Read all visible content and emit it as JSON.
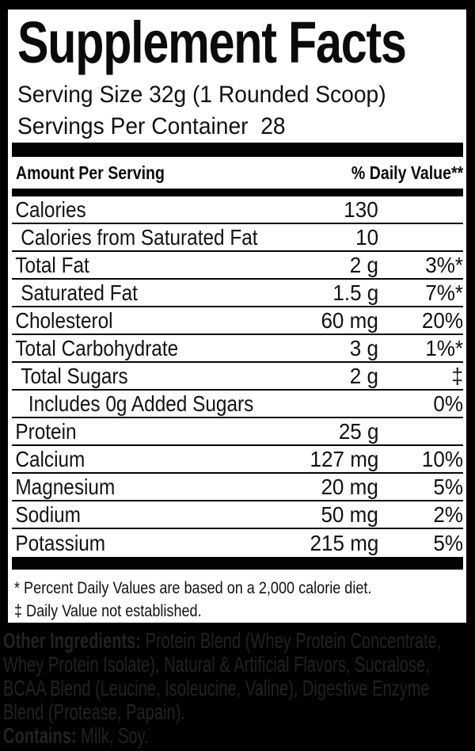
{
  "title": "Supplement Facts",
  "serving": {
    "size_line": "Serving Size 32g (1 Rounded Scoop)",
    "servings_line": "Servings Per Container  28"
  },
  "header": {
    "left": "Amount Per Serving",
    "right": "% Daily Value**"
  },
  "rows": [
    {
      "label": "Calories",
      "amount": "130",
      "dv": "",
      "indent": 0
    },
    {
      "label": "Calories from Saturated Fat",
      "amount": "10",
      "dv": "",
      "indent": 1
    },
    {
      "label": "Total Fat",
      "amount": "2 g",
      "dv": "3%*",
      "indent": 0
    },
    {
      "label": "Saturated Fat",
      "amount": "1.5 g",
      "dv": "7%*",
      "indent": 1
    },
    {
      "label": "Cholesterol",
      "amount": "60 mg",
      "dv": "20%",
      "indent": 0
    },
    {
      "label": "Total Carbohydrate",
      "amount": "3 g",
      "dv": "1%*",
      "indent": 0
    },
    {
      "label": "Total Sugars",
      "amount": "2 g",
      "dv": "‡",
      "indent": 1
    },
    {
      "label": "Includes 0g Added Sugars",
      "amount": "",
      "dv": "0%",
      "indent": 2
    },
    {
      "label": "Protein",
      "amount": "25 g",
      "dv": "",
      "indent": 0
    },
    {
      "label": "Calcium",
      "amount": "127 mg",
      "dv": "10%",
      "indent": 0
    },
    {
      "label": "Magnesium",
      "amount": "20 mg",
      "dv": "5%",
      "indent": 0
    },
    {
      "label": "Sodium",
      "amount": "50 mg",
      "dv": "2%",
      "indent": 0
    },
    {
      "label": "Potassium",
      "amount": "215 mg",
      "dv": "5%",
      "indent": 0
    }
  ],
  "footnotes": [
    "* Percent Daily Values are based on a 2,000 calorie diet.",
    "‡ Daily Value not established."
  ],
  "other_ingredients": {
    "lines": [
      {
        "bold": "Other Ingredients:",
        "text": " Protein Blend (Whey Protein Concentrate,"
      },
      {
        "bold": "",
        "text": "Whey Protein Isolate), Natural & Artificial Flavors, Sucralose,"
      },
      {
        "bold": "",
        "text": "BCAA Blend (Leucine, Isoleucine, Valine), Digestive Enzyme"
      },
      {
        "bold": "",
        "text": "Blend (Protease, Papain)."
      },
      {
        "bold": "Contains:",
        "text": " Milk, Soy."
      }
    ]
  },
  "colors": {
    "background": "#000000",
    "panel": "#ffffff",
    "panel_text": "#141211",
    "bars": "#020202",
    "band_text": "#242120"
  }
}
